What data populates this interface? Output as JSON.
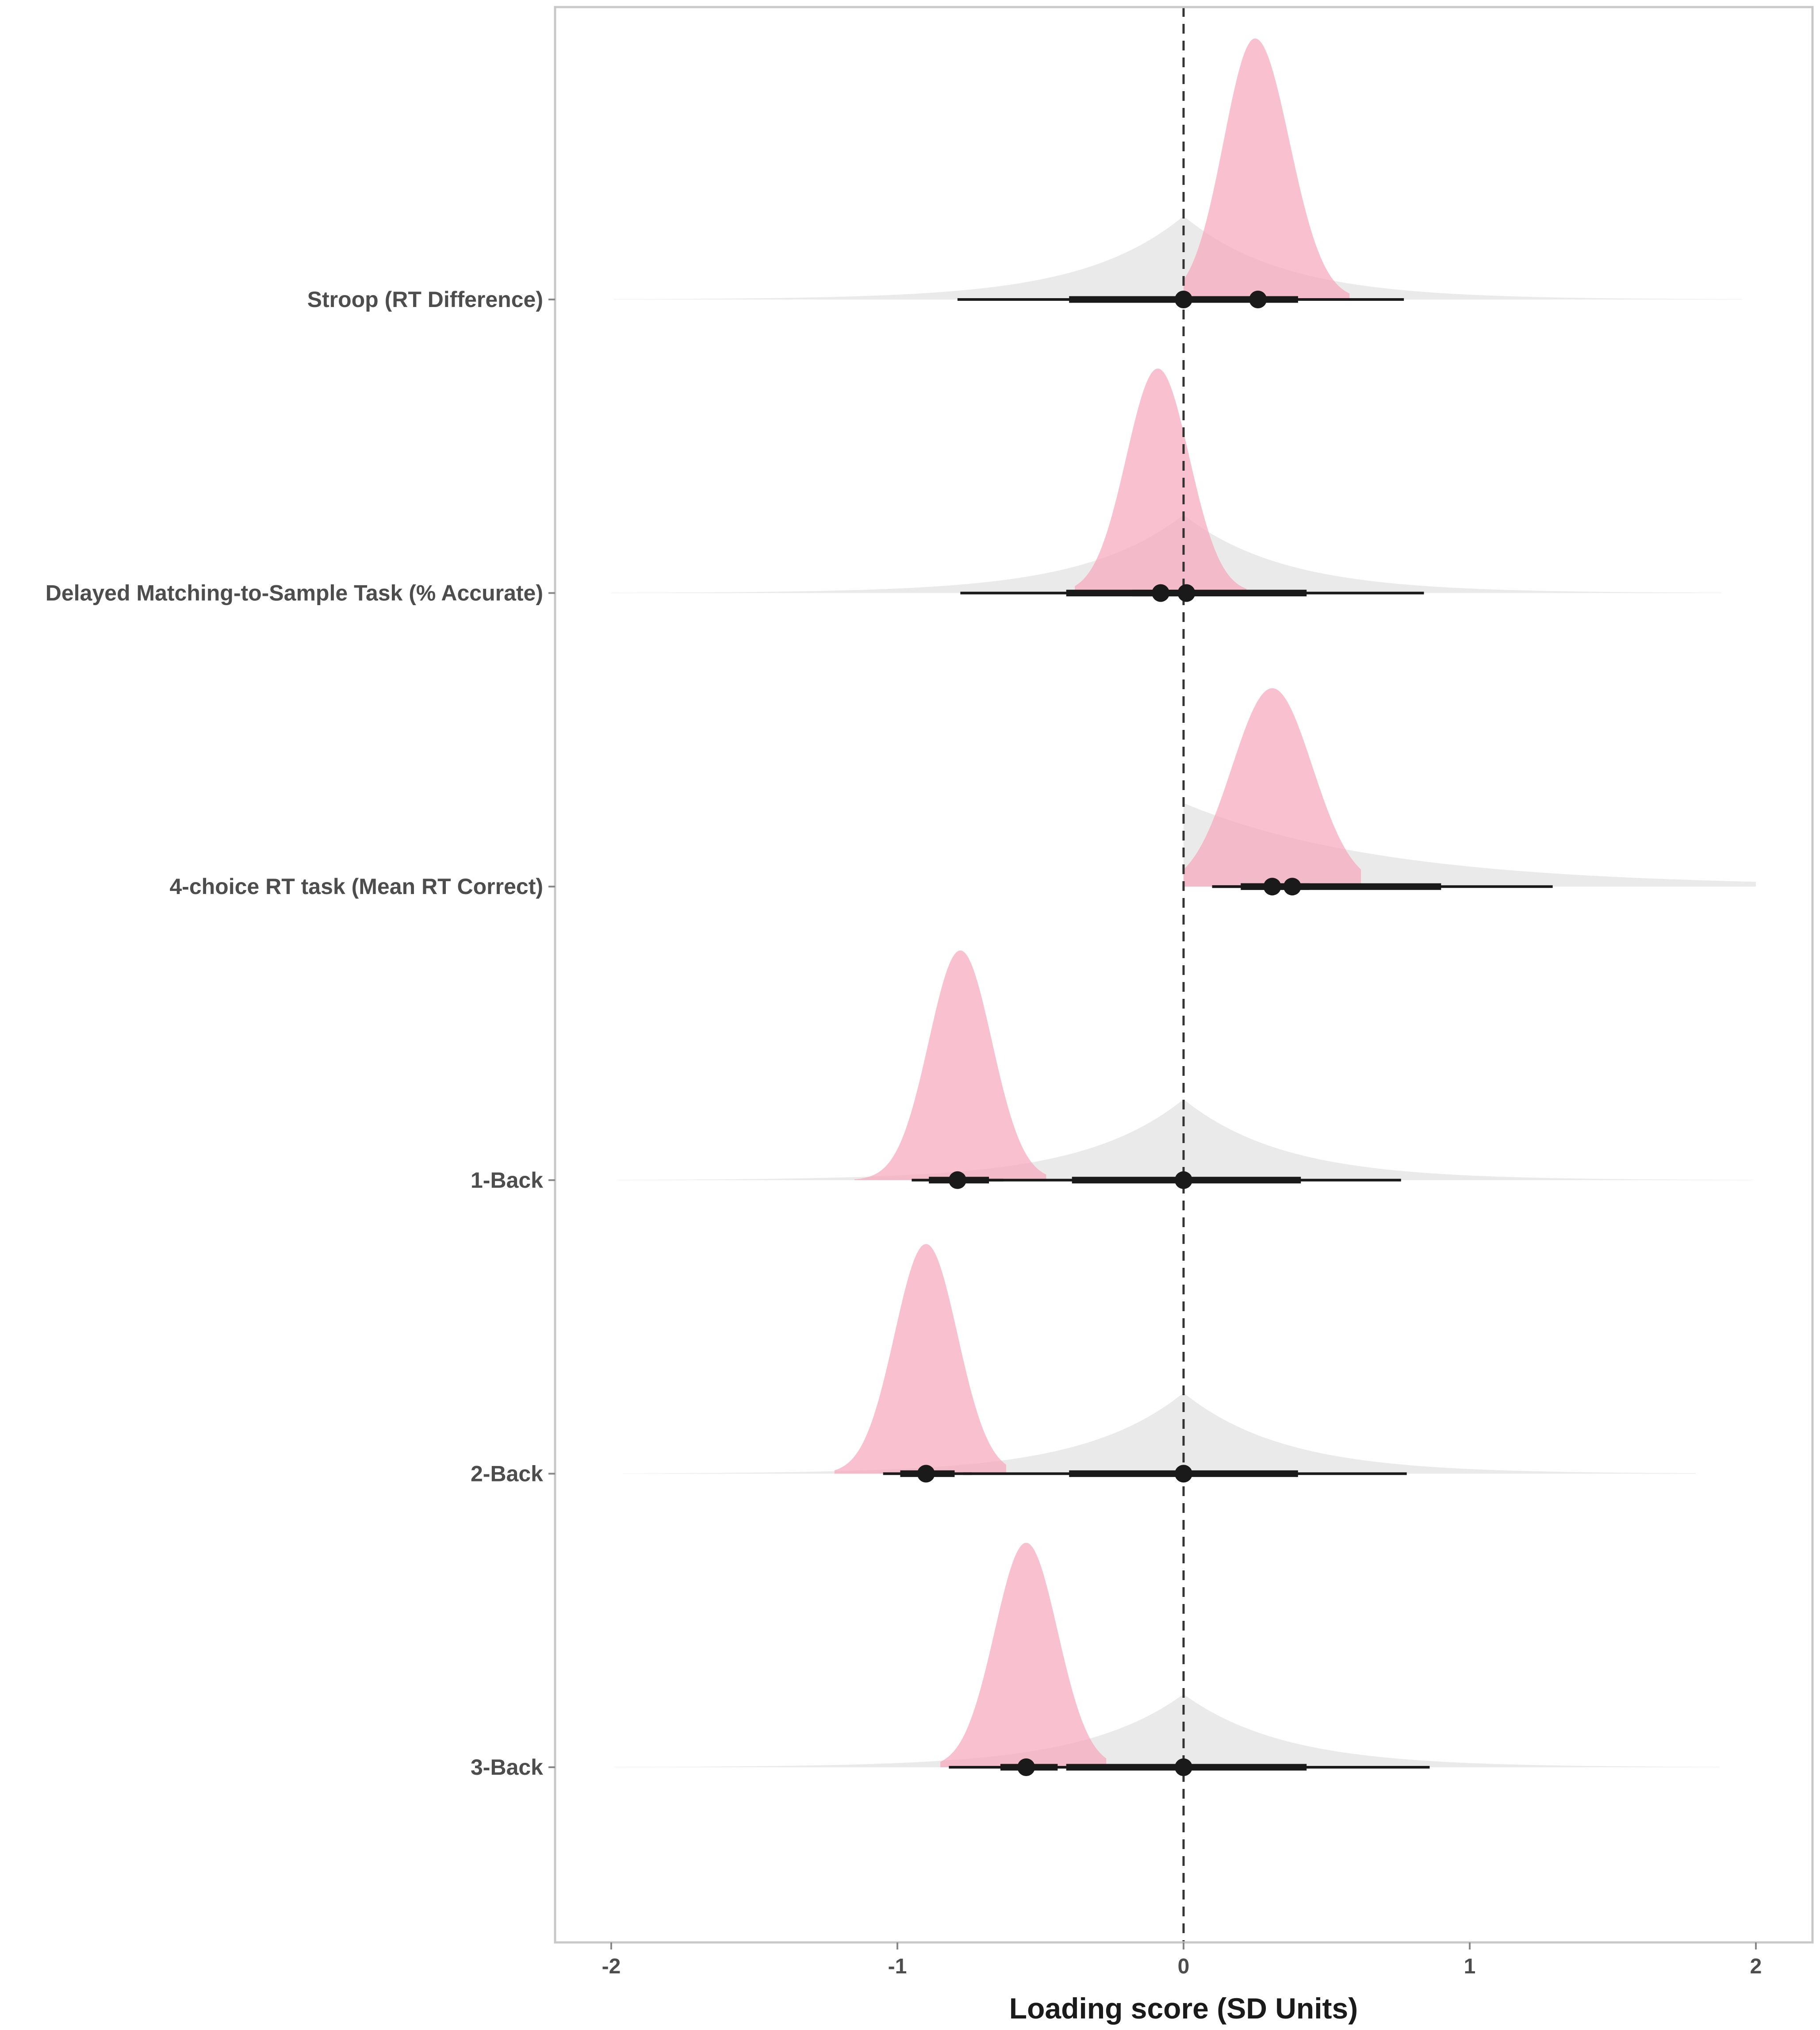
{
  "chart_data": {
    "type": "density-ridgeline",
    "title": "",
    "xlabel": "Loading score (SD Units)",
    "ylabel": "",
    "xlim": [
      -2.2,
      2.2
    ],
    "x_ticks": [
      -2,
      -1,
      0,
      1,
      2
    ],
    "x_tick_labels": [
      "-2",
      "-1",
      "0",
      "1",
      "2"
    ],
    "reference_line": {
      "x": 0,
      "style": "dashed"
    },
    "colors": {
      "posterior": "#f7a8bc",
      "prior": "#d9d9d9",
      "interval": "#1a1a1a",
      "reference": "#333333",
      "panel_border": "#c8c8c8"
    },
    "series": [
      {
        "name": "posterior",
        "description": "pink density"
      },
      {
        "name": "prior",
        "description": "grey density"
      }
    ],
    "rows": [
      {
        "label": "Stroop (RT Difference)",
        "posterior": {
          "mean": 0.25,
          "sd_left": 0.11,
          "sd_right": 0.12,
          "peak_height": 1.0,
          "range": [
            0.0,
            0.58
          ]
        },
        "prior": {
          "mode": 0.0,
          "scale": 0.35,
          "peak_height": 0.32,
          "range": [
            -1.99,
            1.95
          ]
        },
        "posterior_interval": {
          "point": 0.26,
          "inner": [
            0.17,
            0.4
          ],
          "outer": [
            0.1,
            0.4
          ]
        },
        "prior_interval": {
          "point": 0.0,
          "inner": [
            -0.4,
            0.4
          ],
          "outer": [
            -0.79,
            0.77
          ]
        }
      },
      {
        "label": "Delayed Matching-to-Sample Task (% Accurate)",
        "posterior": {
          "mean": -0.09,
          "sd_left": 0.11,
          "sd_right": 0.11,
          "peak_height": 0.86,
          "range": [
            -0.38,
            0.22
          ]
        },
        "prior": {
          "mode": 0.0,
          "scale": 0.35,
          "peak_height": 0.3,
          "range": [
            -2.0,
            1.88
          ]
        },
        "posterior_interval": {
          "point": -0.08,
          "inner": [
            -0.18,
            0.0
          ],
          "outer": [
            -0.26,
            0.1
          ]
        },
        "prior_interval": {
          "point": 0.01,
          "inner": [
            -0.41,
            0.43
          ],
          "outer": [
            -0.78,
            0.84
          ]
        }
      },
      {
        "label": "4-choice RT task (Mean RT Correct)",
        "posterior": {
          "mean": 0.31,
          "sd_left": 0.14,
          "sd_right": 0.14,
          "peak_height": 0.76,
          "range": [
            0.0,
            0.62
          ]
        },
        "prior": {
          "mode": 0.0,
          "scale": 0.7,
          "peak_height": 0.32,
          "range": [
            0.0,
            2.0
          ]
        },
        "posterior_interval": {
          "point": 0.31,
          "inner": [
            0.2,
            0.44
          ],
          "outer": [
            0.1,
            0.55
          ]
        },
        "prior_interval": {
          "point": 0.38,
          "inner": [
            0.2,
            0.9
          ],
          "outer": [
            0.1,
            1.29
          ]
        }
      },
      {
        "label": "1-Back",
        "posterior": {
          "mean": -0.78,
          "sd_left": 0.11,
          "sd_right": 0.11,
          "peak_height": 0.88,
          "range": [
            -1.15,
            -0.48
          ]
        },
        "prior": {
          "mode": 0.0,
          "scale": 0.35,
          "peak_height": 0.31,
          "range": [
            -1.98,
            1.99
          ]
        },
        "posterior_interval": {
          "point": -0.79,
          "inner": [
            -0.89,
            -0.68
          ],
          "outer": [
            -0.95,
            -0.63
          ]
        },
        "prior_interval": {
          "point": 0.0,
          "inner": [
            -0.39,
            0.41
          ],
          "outer": [
            -0.78,
            0.76
          ]
        }
      },
      {
        "label": "2-Back",
        "posterior": {
          "mean": -0.9,
          "sd_left": 0.11,
          "sd_right": 0.11,
          "peak_height": 0.88,
          "range": [
            -1.22,
            -0.62
          ]
        },
        "prior": {
          "mode": 0.0,
          "scale": 0.35,
          "peak_height": 0.31,
          "range": [
            -1.96,
            1.79
          ]
        },
        "posterior_interval": {
          "point": -0.9,
          "inner": [
            -0.99,
            -0.8
          ],
          "outer": [
            -1.05,
            -0.74
          ]
        },
        "prior_interval": {
          "point": 0.0,
          "inner": [
            -0.4,
            0.4
          ],
          "outer": [
            -0.77,
            0.78
          ]
        }
      },
      {
        "label": "3-Back",
        "posterior": {
          "mean": -0.55,
          "sd_left": 0.11,
          "sd_right": 0.11,
          "peak_height": 0.86,
          "range": [
            -0.85,
            -0.27
          ]
        },
        "prior": {
          "mode": 0.0,
          "scale": 0.35,
          "peak_height": 0.28,
          "range": [
            -1.99,
            1.87
          ]
        },
        "posterior_interval": {
          "point": -0.55,
          "inner": [
            -0.64,
            -0.44
          ],
          "outer": [
            -0.82,
            -0.37
          ]
        },
        "prior_interval": {
          "point": 0.0,
          "inner": [
            -0.41,
            0.43
          ],
          "outer": [
            -0.8,
            0.86
          ]
        }
      }
    ]
  }
}
